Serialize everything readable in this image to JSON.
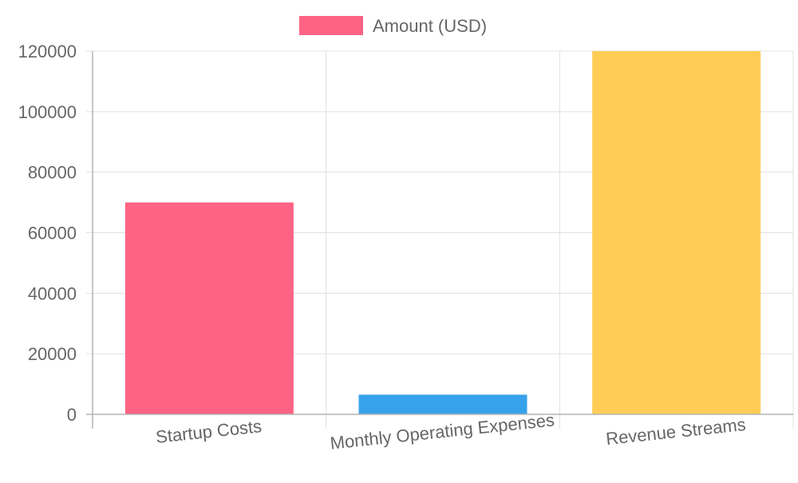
{
  "chart_data": {
    "type": "bar",
    "categories": [
      "Startup Costs",
      "Monthly Operating Expenses",
      "Revenue Streams"
    ],
    "series": [
      {
        "name": "Amount (USD)",
        "values": [
          70000,
          6500,
          120000
        ],
        "colors": [
          "#ff6384",
          "#36a2eb",
          "#ffcd56"
        ]
      }
    ],
    "legend": {
      "label": "Amount (USD)",
      "color": "#ff6384",
      "position": "top"
    },
    "ylim": [
      0,
      120000
    ],
    "yticks": [
      "0",
      "20000",
      "40000",
      "60000",
      "80000",
      "100000",
      "120000"
    ],
    "grid": true
  }
}
